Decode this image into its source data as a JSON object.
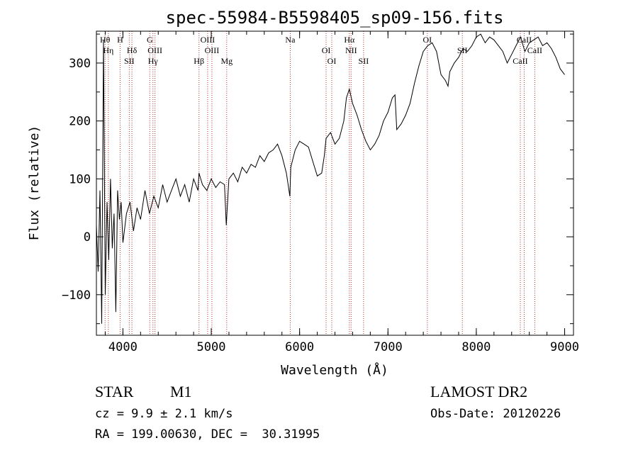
{
  "chart_data": {
    "type": "line",
    "title": "spec-55984-B5598405_sp09-156.fits",
    "xlabel": "Wavelength (Å)",
    "ylabel": "Flux (relative)",
    "xlim": [
      3700,
      9100
    ],
    "ylim": [
      -170,
      355
    ],
    "xticks": [
      4000,
      5000,
      6000,
      7000,
      8000,
      9000
    ],
    "yticks": [
      -100,
      0,
      100,
      200,
      300
    ],
    "grid": false,
    "series": [
      {
        "values_x": [
          3700,
          3720,
          3740,
          3760,
          3780,
          3800,
          3820,
          3840,
          3860,
          3880,
          3900,
          3920,
          3940,
          3960,
          3980,
          4000,
          4040,
          4080,
          4120,
          4160,
          4200,
          4250,
          4300,
          4350,
          4400,
          4450,
          4500,
          4550,
          4600,
          4650,
          4700,
          4750,
          4800,
          4850,
          4861,
          4900,
          4950,
          5000,
          5050,
          5100,
          5150,
          5170,
          5200,
          5250,
          5300,
          5350,
          5400,
          5450,
          5500,
          5550,
          5600,
          5650,
          5700,
          5750,
          5800,
          5850,
          5890,
          5900,
          5950,
          6000,
          6050,
          6100,
          6150,
          6200,
          6250,
          6280,
          6300,
          6350,
          6400,
          6450,
          6500,
          6530,
          6563,
          6600,
          6650,
          6700,
          6750,
          6800,
          6850,
          6900,
          6950,
          7000,
          7050,
          7080,
          7100,
          7150,
          7200,
          7250,
          7300,
          7350,
          7400,
          7450,
          7500,
          7550,
          7600,
          7650,
          7680,
          7700,
          7750,
          7800,
          7850,
          7900,
          7950,
          8000,
          8050,
          8100,
          8150,
          8200,
          8250,
          8300,
          8350,
          8400,
          8450,
          8500,
          8550,
          8600,
          8650,
          8700,
          8750,
          8800,
          8850,
          8900,
          8950,
          9000
        ],
        "values_y": [
          20,
          -60,
          80,
          -150,
          340,
          -100,
          60,
          -40,
          100,
          -20,
          40,
          -130,
          80,
          30,
          60,
          -10,
          40,
          60,
          10,
          50,
          30,
          80,
          40,
          70,
          50,
          90,
          60,
          80,
          100,
          70,
          90,
          60,
          100,
          80,
          110,
          90,
          80,
          100,
          85,
          95,
          90,
          20,
          100,
          110,
          95,
          120,
          110,
          125,
          120,
          140,
          130,
          145,
          150,
          160,
          140,
          110,
          70,
          120,
          150,
          165,
          160,
          155,
          130,
          105,
          110,
          140,
          170,
          180,
          160,
          170,
          200,
          240,
          255,
          230,
          210,
          185,
          165,
          150,
          160,
          175,
          200,
          215,
          240,
          245,
          185,
          195,
          210,
          230,
          265,
          295,
          320,
          330,
          335,
          320,
          280,
          270,
          260,
          285,
          300,
          310,
          325,
          320,
          330,
          345,
          350,
          335,
          345,
          340,
          330,
          320,
          300,
          315,
          330,
          345,
          320,
          335,
          340,
          345,
          330,
          335,
          325,
          310,
          290,
          280
        ],
        "name": ""
      }
    ],
    "lines": [
      {
        "label": "Hθ",
        "wl": 3798
      },
      {
        "label": "Hη",
        "wl": 3835
      },
      {
        "label": "SII",
        "wl": 4072
      },
      {
        "label": "H",
        "wl": 3968
      },
      {
        "label": "Hδ",
        "wl": 4102
      },
      {
        "label": "Hγ",
        "wl": 4340
      },
      {
        "label": "G",
        "wl": 4304
      },
      {
        "label": "OIII",
        "wl": 4363
      },
      {
        "label": "Hβ",
        "wl": 4861
      },
      {
        "label": "OIII",
        "wl": 4959
      },
      {
        "label": "OIII",
        "wl": 5007
      },
      {
        "label": "Mg",
        "wl": 5175
      },
      {
        "label": "Na",
        "wl": 5894
      },
      {
        "label": "OI",
        "wl": 6300
      },
      {
        "label": "OI",
        "wl": 6364
      },
      {
        "label": "Hα",
        "wl": 6563
      },
      {
        "label": "NII",
        "wl": 6583
      },
      {
        "label": "SII",
        "wl": 6724
      },
      {
        "label": "OI",
        "wl": 7446
      },
      {
        "label": "SII",
        "wl": 7842
      },
      {
        "label": "CaII",
        "wl": 8498
      },
      {
        "label": "CaII",
        "wl": 8542
      },
      {
        "label": "CaII",
        "wl": 8662
      }
    ],
    "line_color": "#000000",
    "marker_color": "#b03030"
  },
  "info": {
    "obj_class": "STAR",
    "subclass": "M1",
    "cz": "cz = 9.9 ± 2.1 km/s",
    "radec": "RA = 199.00630, DEC =  30.31995",
    "survey": "LAMOST DR2",
    "obs_date": "Obs-Date: 20120226"
  }
}
